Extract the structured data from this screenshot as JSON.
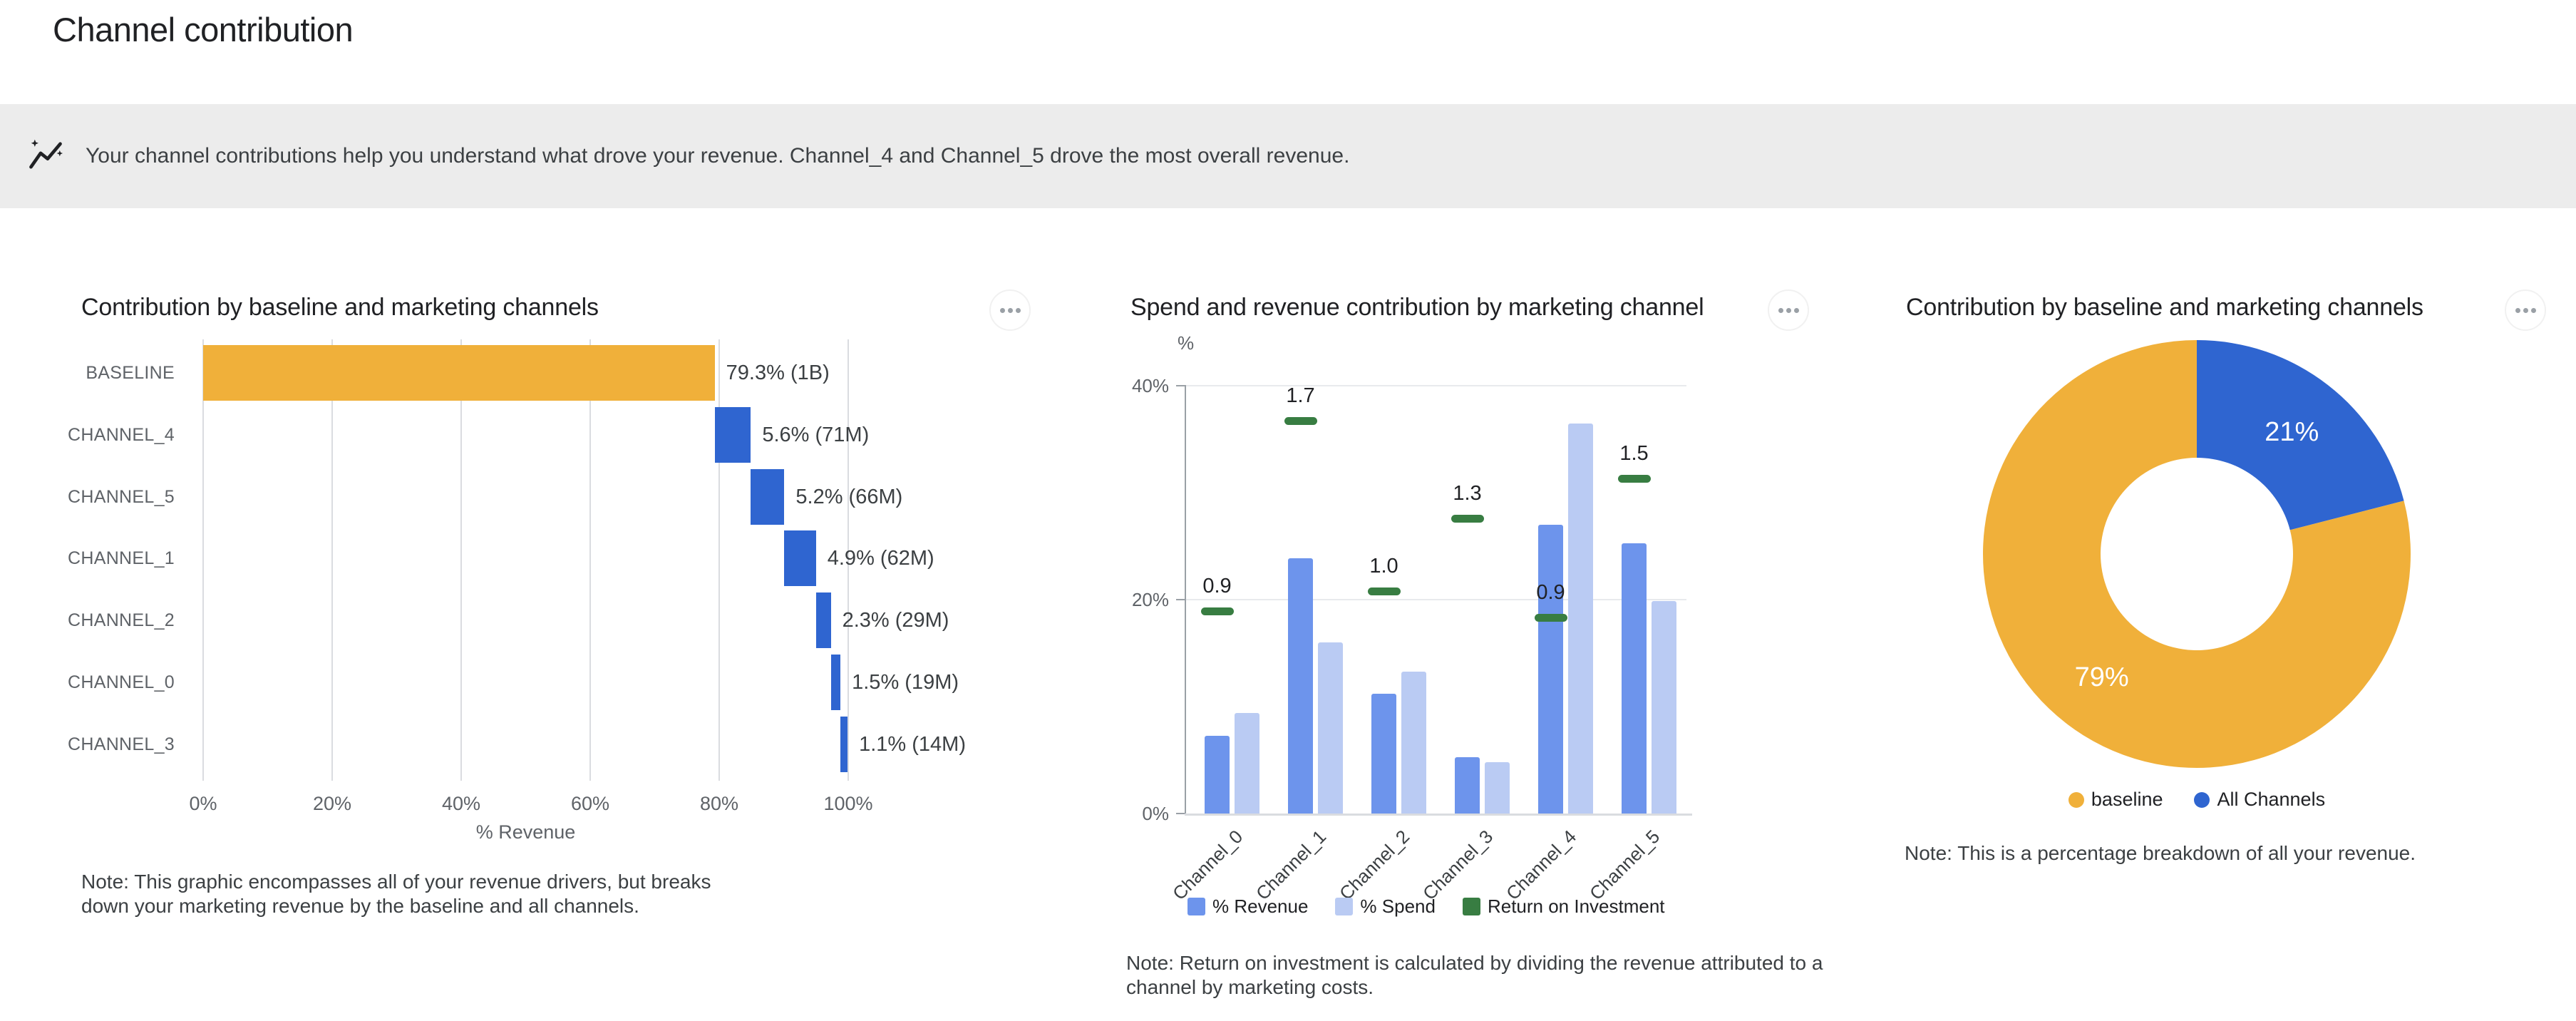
{
  "page_title": "Channel contribution",
  "banner": {
    "icon": "insights-icon",
    "text": "Your channel contributions help you understand what drove your revenue. Channel_4 and Channel_5 drove the most overall revenue."
  },
  "menu_button_label": "more options",
  "chart_data": [
    {
      "id": "waterfall",
      "type": "bar",
      "subtype": "horizontal-waterfall",
      "title": "Contribution by baseline and marketing channels",
      "categories": [
        "BASELINE",
        "CHANNEL_4",
        "CHANNEL_5",
        "CHANNEL_1",
        "CHANNEL_2",
        "CHANNEL_0",
        "CHANNEL_3"
      ],
      "values": [
        79.3,
        5.6,
        5.2,
        4.9,
        2.3,
        1.5,
        1.1
      ],
      "value_labels": [
        "79.3% (1B)",
        "5.6% (71M)",
        "5.2% (66M)",
        "4.9% (62M)",
        "2.3% (29M)",
        "1.5% (19M)",
        "1.1% (14M)"
      ],
      "xlabel": "% Revenue",
      "x_ticks": [
        "0%",
        "20%",
        "40%",
        "60%",
        "80%",
        "100%"
      ],
      "x_tick_vals": [
        0,
        20,
        40,
        60,
        80,
        100
      ],
      "xlim": [
        0,
        100
      ],
      "grid": true,
      "colors": {
        "baseline": "#F0B03A",
        "channel": "#2F65D0"
      },
      "note": "Note: This graphic encompasses all of your revenue drivers, but breaks down your marketing revenue by the baseline and all channels."
    },
    {
      "id": "spend-revenue",
      "type": "bar",
      "subtype": "grouped-vertical-with-markers",
      "title": "Spend and revenue contribution by marketing channel",
      "categories": [
        "Channel_0",
        "Channel_1",
        "Channel_2",
        "Channel_3",
        "Channel_4",
        "Channel_5"
      ],
      "series": [
        {
          "name": "% Revenue",
          "color": "#6D94EC",
          "values": [
            7.3,
            23.9,
            11.2,
            5.3,
            27.0,
            25.3
          ]
        },
        {
          "name": "% Spend",
          "color": "#BACBF3",
          "values": [
            9.4,
            16.0,
            13.3,
            4.8,
            36.5,
            19.9
          ]
        },
        {
          "name": "Return on Investment",
          "color": "#387D42",
          "style": "marker",
          "values": [
            0.9,
            1.7,
            1.0,
            1.3,
            0.9,
            1.5
          ],
          "marker_pct": [
            18.9,
            36.7,
            20.8,
            27.6,
            18.3,
            31.3
          ]
        }
      ],
      "ylabel": "%",
      "y_ticks": [
        "0%",
        "20%",
        "40%"
      ],
      "y_tick_vals": [
        0,
        20,
        40
      ],
      "ylim": [
        0,
        42
      ],
      "grid": true,
      "legend_position": "bottom",
      "note": "Note: Return on investment is calculated by dividing the revenue attributed to a channel by marketing costs."
    },
    {
      "id": "donut",
      "type": "pie",
      "subtype": "donut",
      "title": "Contribution by baseline and marketing channels",
      "series": [
        {
          "label": "baseline",
          "value": 79,
          "display": "79%",
          "color": "#F0B03A"
        },
        {
          "label": "All Channels",
          "value": 21,
          "display": "21%",
          "color": "#2F65D0"
        }
      ],
      "legend_position": "bottom",
      "note": "Note: This is a percentage breakdown of all your revenue."
    }
  ]
}
